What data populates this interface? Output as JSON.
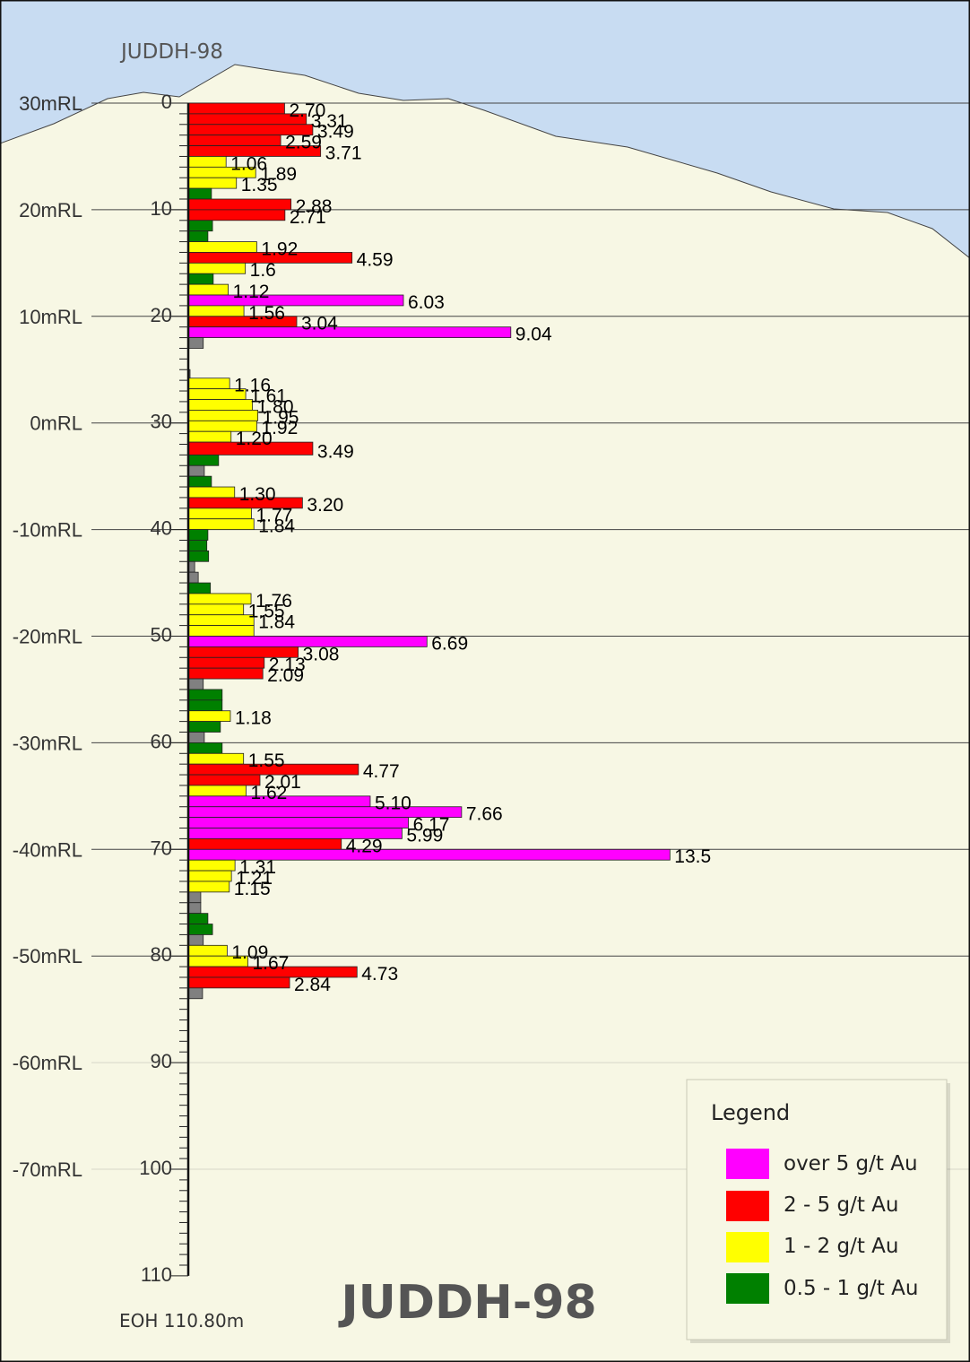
{
  "chart_data": {
    "type": "bar",
    "orientation": "horizontal",
    "hole_label": "JUDDH-98",
    "title": "JUDDH-98",
    "eoh_label": "EOH 110.80m",
    "depth_axis": {
      "min": 0,
      "max": 110,
      "major_step": 10,
      "minor_step": 1,
      "tick_labels": [
        "0",
        "10",
        "20",
        "30",
        "40",
        "50",
        "60",
        "70",
        "80",
        "90",
        "100",
        "110"
      ]
    },
    "rl_labels": [
      "30mRL",
      "20mRL",
      "10mRL",
      "0mRL",
      "-10mRL",
      "-20mRL",
      "-30mRL",
      "-40mRL",
      "-50mRL",
      "-60mRL",
      "-70mRL"
    ],
    "value_unit": "g/t Au",
    "legend": {
      "title": "Legend",
      "items": [
        {
          "label": "over 5 g/t Au",
          "color": "#ff00ff"
        },
        {
          "label": "2 - 5 g/t Au",
          "color": "#ff0000"
        },
        {
          "label": "1 - 2 g/t Au",
          "color": "#ffff00"
        },
        {
          "label": "0.5 - 1 g/t Au",
          "color": "#008000"
        }
      ]
    },
    "colors": {
      "sky": "#c8dcf2",
      "ground": "#f7f7e4",
      "below": "#808080"
    },
    "intervals": [
      {
        "from": 0,
        "to": 1,
        "value": 2.7,
        "label": "2.70"
      },
      {
        "from": 1,
        "to": 2,
        "value": 3.31,
        "label": "3.31"
      },
      {
        "from": 2,
        "to": 3,
        "value": 3.49,
        "label": "3.49"
      },
      {
        "from": 3,
        "to": 4,
        "value": 2.59,
        "label": "2.59"
      },
      {
        "from": 4,
        "to": 5,
        "value": 3.71,
        "label": "3.71"
      },
      {
        "from": 5,
        "to": 6,
        "value": 1.06,
        "label": "1.06"
      },
      {
        "from": 6,
        "to": 7,
        "value": 1.89,
        "label": "1.89"
      },
      {
        "from": 7,
        "to": 8,
        "value": 1.35,
        "label": "1.35"
      },
      {
        "from": 8,
        "to": 9,
        "value": 0.65,
        "label": ""
      },
      {
        "from": 9,
        "to": 10,
        "value": 2.88,
        "label": "2.88"
      },
      {
        "from": 10,
        "to": 11,
        "value": 2.71,
        "label": "2.71"
      },
      {
        "from": 11,
        "to": 12,
        "value": 0.68,
        "label": ""
      },
      {
        "from": 12,
        "to": 13,
        "value": 0.55,
        "label": ""
      },
      {
        "from": 13,
        "to": 14,
        "value": 1.92,
        "label": "1.92"
      },
      {
        "from": 14,
        "to": 15,
        "value": 4.59,
        "label": "4.59"
      },
      {
        "from": 15,
        "to": 16,
        "value": 1.6,
        "label": "1.6"
      },
      {
        "from": 16,
        "to": 17,
        "value": 0.7,
        "label": ""
      },
      {
        "from": 17,
        "to": 18,
        "value": 1.12,
        "label": "1.12"
      },
      {
        "from": 18,
        "to": 19,
        "value": 6.03,
        "label": "6.03"
      },
      {
        "from": 19,
        "to": 20,
        "value": 1.56,
        "label": "1.56"
      },
      {
        "from": 20,
        "to": 21,
        "value": 3.04,
        "label": "3.04"
      },
      {
        "from": 21,
        "to": 22,
        "value": 9.04,
        "label": "9.04"
      },
      {
        "from": 22,
        "to": 23,
        "value": 0.42,
        "label": ""
      },
      {
        "from": 25,
        "to": 25.8,
        "value": 0.05,
        "label": ""
      },
      {
        "from": 25.8,
        "to": 26.8,
        "value": 1.16,
        "label": "1.16"
      },
      {
        "from": 26.8,
        "to": 27.8,
        "value": 1.61,
        "label": "1.61"
      },
      {
        "from": 27.8,
        "to": 28.8,
        "value": 1.8,
        "label": "1.80"
      },
      {
        "from": 28.8,
        "to": 29.8,
        "value": 1.95,
        "label": "1.95"
      },
      {
        "from": 29.8,
        "to": 30.8,
        "value": 1.92,
        "label": "1.92"
      },
      {
        "from": 30.8,
        "to": 31.8,
        "value": 1.2,
        "label": "1.20"
      },
      {
        "from": 31.8,
        "to": 33,
        "value": 3.49,
        "label": "3.49"
      },
      {
        "from": 33,
        "to": 34,
        "value": 0.85,
        "label": ""
      },
      {
        "from": 34,
        "to": 35,
        "value": 0.45,
        "label": ""
      },
      {
        "from": 35,
        "to": 36,
        "value": 0.65,
        "label": ""
      },
      {
        "from": 36,
        "to": 37,
        "value": 1.3,
        "label": "1.30"
      },
      {
        "from": 37,
        "to": 38,
        "value": 3.2,
        "label": "3.20"
      },
      {
        "from": 38,
        "to": 39,
        "value": 1.77,
        "label": "1.77"
      },
      {
        "from": 39,
        "to": 40,
        "value": 1.84,
        "label": "1.84"
      },
      {
        "from": 40,
        "to": 41,
        "value": 0.55,
        "label": ""
      },
      {
        "from": 41,
        "to": 42,
        "value": 0.52,
        "label": ""
      },
      {
        "from": 42,
        "to": 43,
        "value": 0.57,
        "label": ""
      },
      {
        "from": 43,
        "to": 44,
        "value": 0.18,
        "label": ""
      },
      {
        "from": 44,
        "to": 45,
        "value": 0.28,
        "label": ""
      },
      {
        "from": 45,
        "to": 46,
        "value": 0.62,
        "label": ""
      },
      {
        "from": 46,
        "to": 47,
        "value": 1.76,
        "label": "1.76"
      },
      {
        "from": 47,
        "to": 48,
        "value": 1.55,
        "label": "1.55"
      },
      {
        "from": 48,
        "to": 49,
        "value": 1.84,
        "label": "1.84"
      },
      {
        "from": 49,
        "to": 50,
        "value": 1.84,
        "label": ""
      },
      {
        "from": 50,
        "to": 51,
        "value": 6.69,
        "label": "6.69"
      },
      {
        "from": 51,
        "to": 52,
        "value": 3.08,
        "label": "3.08"
      },
      {
        "from": 52,
        "to": 53,
        "value": 2.13,
        "label": "2.13"
      },
      {
        "from": 53,
        "to": 54,
        "value": 2.09,
        "label": "2.09"
      },
      {
        "from": 54,
        "to": 55,
        "value": 0.42,
        "label": ""
      },
      {
        "from": 55,
        "to": 56,
        "value": 0.95,
        "label": ""
      },
      {
        "from": 56,
        "to": 57,
        "value": 0.95,
        "label": ""
      },
      {
        "from": 57,
        "to": 58,
        "value": 1.18,
        "label": "1.18"
      },
      {
        "from": 58,
        "to": 59,
        "value": 0.9,
        "label": ""
      },
      {
        "from": 59,
        "to": 60,
        "value": 0.45,
        "label": ""
      },
      {
        "from": 60,
        "to": 61,
        "value": 0.95,
        "label": ""
      },
      {
        "from": 61,
        "to": 62,
        "value": 1.55,
        "label": "1.55"
      },
      {
        "from": 62,
        "to": 63,
        "value": 4.77,
        "label": "4.77"
      },
      {
        "from": 63,
        "to": 64,
        "value": 2.01,
        "label": "2.01"
      },
      {
        "from": 64,
        "to": 65,
        "value": 1.62,
        "label": "1.62"
      },
      {
        "from": 65,
        "to": 66,
        "value": 5.1,
        "label": "5.10"
      },
      {
        "from": 66,
        "to": 67,
        "value": 7.66,
        "label": "7.66"
      },
      {
        "from": 67,
        "to": 68,
        "value": 6.17,
        "label": "6.17"
      },
      {
        "from": 68,
        "to": 69,
        "value": 5.99,
        "label": "5.99"
      },
      {
        "from": 69,
        "to": 70,
        "value": 4.29,
        "label": "4.29"
      },
      {
        "from": 70,
        "to": 71,
        "value": 13.5,
        "label": "13.5"
      },
      {
        "from": 71,
        "to": 72,
        "value": 1.31,
        "label": "1.31"
      },
      {
        "from": 72,
        "to": 73,
        "value": 1.21,
        "label": "1.21"
      },
      {
        "from": 73,
        "to": 74,
        "value": 1.15,
        "label": "1.15"
      },
      {
        "from": 74,
        "to": 75,
        "value": 0.35,
        "label": ""
      },
      {
        "from": 75,
        "to": 76,
        "value": 0.35,
        "label": ""
      },
      {
        "from": 76,
        "to": 77,
        "value": 0.55,
        "label": ""
      },
      {
        "from": 77,
        "to": 78,
        "value": 0.68,
        "label": ""
      },
      {
        "from": 78,
        "to": 79,
        "value": 0.42,
        "label": ""
      },
      {
        "from": 79,
        "to": 80,
        "value": 1.09,
        "label": "1.09"
      },
      {
        "from": 80,
        "to": 81,
        "value": 1.67,
        "label": "1.67"
      },
      {
        "from": 81,
        "to": 82,
        "value": 4.73,
        "label": "4.73"
      },
      {
        "from": 82,
        "to": 83,
        "value": 2.84,
        "label": "2.84"
      },
      {
        "from": 83,
        "to": 84,
        "value": 0.4,
        "label": ""
      }
    ]
  }
}
